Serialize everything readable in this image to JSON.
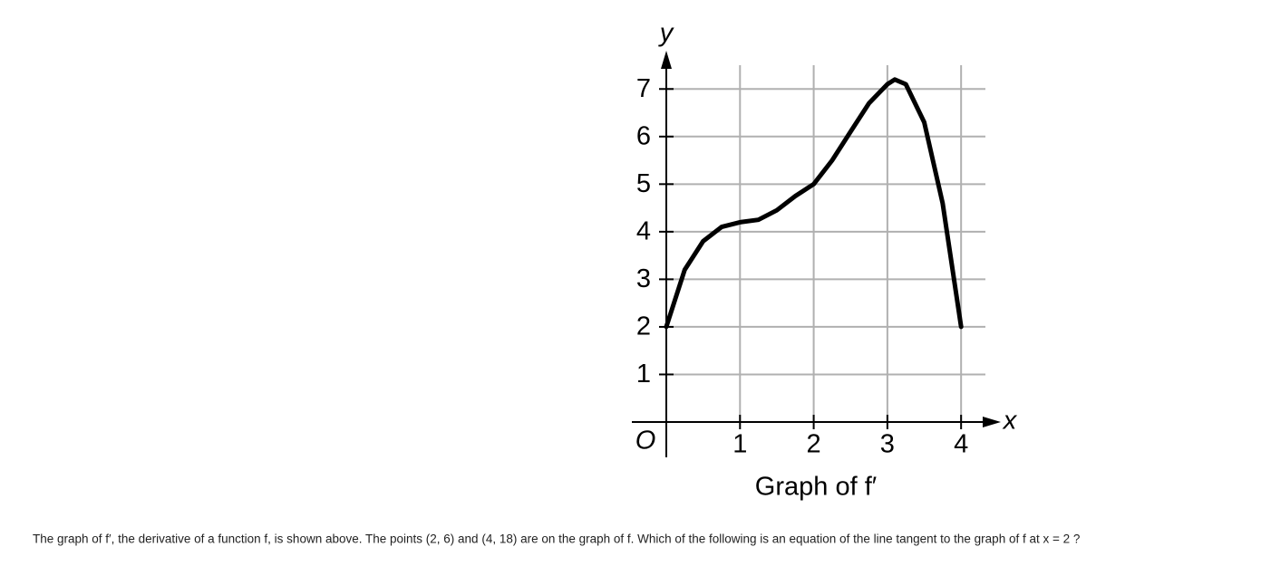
{
  "chart_data": {
    "type": "line",
    "caption": "Graph of f′",
    "x_label": "x",
    "y_label": "y",
    "origin_label": "O",
    "x": [
      0,
      0.25,
      0.5,
      0.75,
      1,
      1.25,
      1.5,
      1.75,
      2,
      2.25,
      2.5,
      2.75,
      3,
      3.1,
      3.25,
      3.5,
      3.75,
      4
    ],
    "series": [
      {
        "name": "f′",
        "color": "#000000",
        "values": [
          2,
          3.2,
          3.8,
          4.1,
          4.2,
          4.25,
          4.45,
          4.75,
          5,
          5.5,
          6.1,
          6.7,
          7.1,
          7.2,
          7.1,
          6.3,
          4.6,
          2
        ]
      }
    ],
    "xlim": [
      0,
      4.33
    ],
    "ylim": [
      0,
      7.5
    ],
    "xticks": [
      1,
      2,
      3,
      4
    ],
    "yticks": [
      1,
      2,
      3,
      4,
      5,
      6,
      7
    ],
    "grid": true
  },
  "question": "The graph of f′, the derivative of a function f, is shown above. The points (2, 6) and (4, 18) are on the graph of f. Which of the following is an equation of the line tangent to the graph of f at x = 2 ?"
}
